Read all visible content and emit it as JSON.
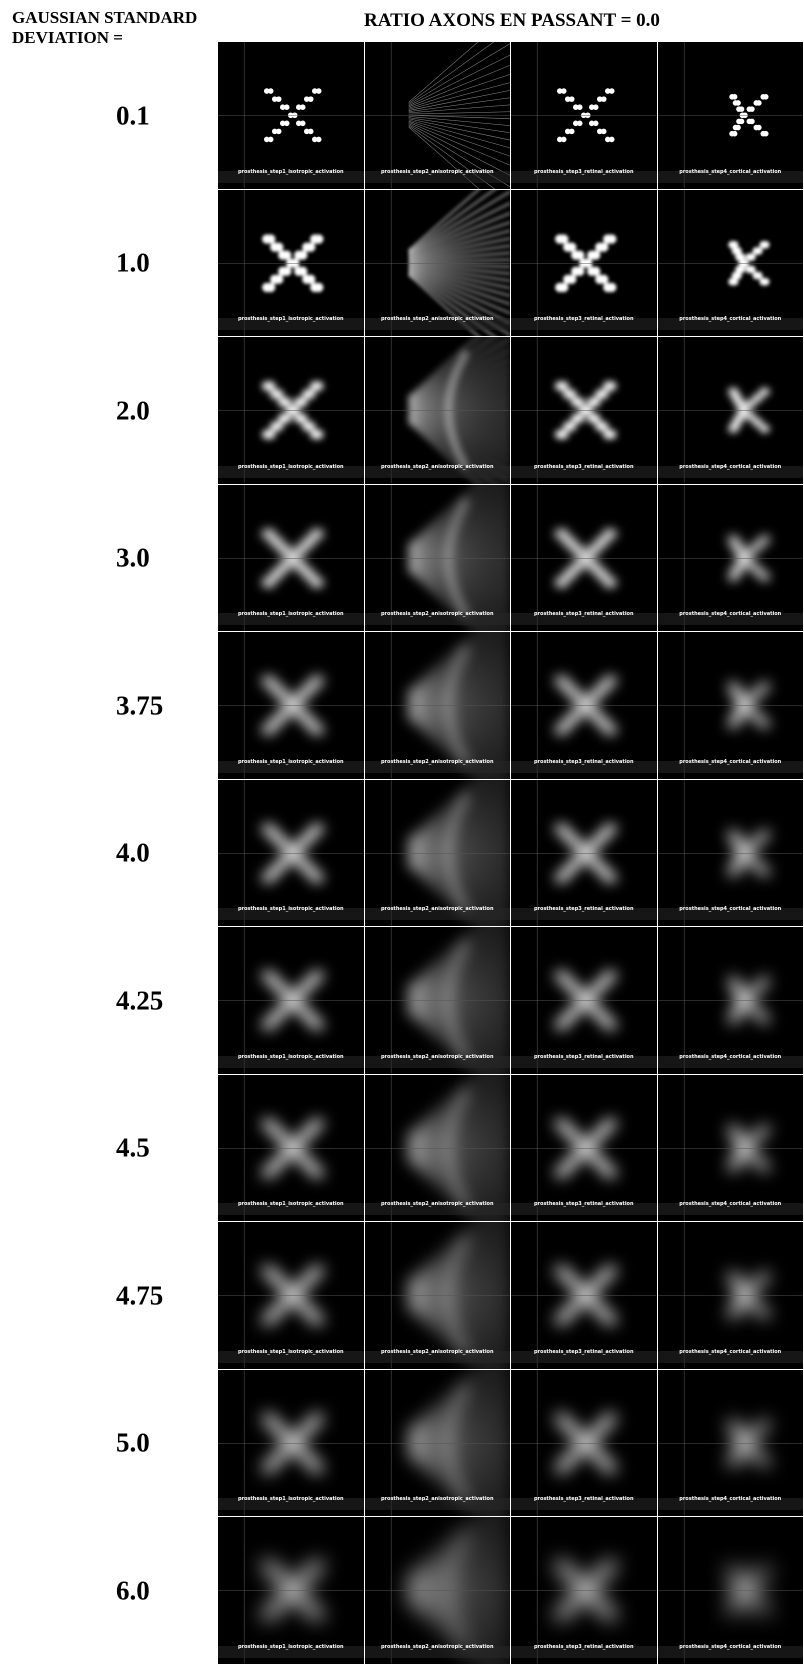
{
  "header": {
    "left_line1": "GAUSSIAN STANDARD",
    "left_line2": "DEVIATION =",
    "top": "RATIO AXONS EN PASSANT = 0.0"
  },
  "columns": [
    {
      "key": "iso",
      "caption": "prosthesis_step1_isotropic_activation"
    },
    {
      "key": "aniso",
      "caption": "prosthesis_step2_anisotropic_activation"
    },
    {
      "key": "retinal",
      "caption": "prosthesis_step3_retinal_activation"
    },
    {
      "key": "cortical",
      "caption": "prosthesis_step4_cortical_activation"
    }
  ],
  "rows": [
    {
      "sigma": "0.1"
    },
    {
      "sigma": "1.0"
    },
    {
      "sigma": "2.0"
    },
    {
      "sigma": "3.0"
    },
    {
      "sigma": "3.75"
    },
    {
      "sigma": "4.0"
    },
    {
      "sigma": "4.25"
    },
    {
      "sigma": "4.5"
    },
    {
      "sigma": "4.75"
    },
    {
      "sigma": "5.0"
    },
    {
      "sigma": "6.0"
    }
  ]
}
